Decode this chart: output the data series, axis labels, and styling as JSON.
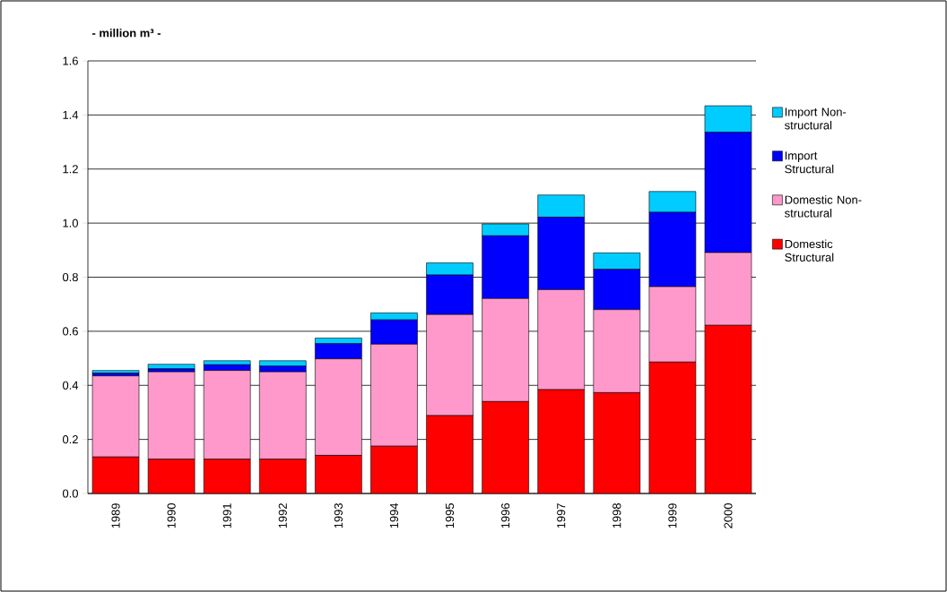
{
  "chart_data": {
    "type": "bar",
    "stacked": true,
    "ylabel": "- million m³ -",
    "categories": [
      "1989",
      "1990",
      "1991",
      "1992",
      "1993",
      "1994",
      "1995",
      "1996",
      "1997",
      "1998",
      "1999",
      "2000"
    ],
    "series": [
      {
        "name": "Domestic Structural",
        "color": "#ff0000",
        "values": [
          0.135,
          0.127,
          0.127,
          0.127,
          0.141,
          0.175,
          0.288,
          0.34,
          0.384,
          0.373,
          0.486,
          0.622
        ]
      },
      {
        "name": "Domestic Non-structural",
        "color": "#ff99cc",
        "values": [
          0.3,
          0.323,
          0.328,
          0.323,
          0.357,
          0.377,
          0.374,
          0.381,
          0.37,
          0.307,
          0.279,
          0.269
        ]
      },
      {
        "name": "Import Structural",
        "color": "#0000ff",
        "values": [
          0.01,
          0.011,
          0.021,
          0.021,
          0.056,
          0.09,
          0.146,
          0.232,
          0.268,
          0.149,
          0.275,
          0.445
        ]
      },
      {
        "name": "Import Non-structural",
        "color": "#00ccff",
        "values": [
          0.01,
          0.017,
          0.015,
          0.02,
          0.021,
          0.026,
          0.045,
          0.044,
          0.082,
          0.061,
          0.077,
          0.098
        ]
      }
    ],
    "ylim": [
      0,
      1.6
    ],
    "yticks": [
      {
        "value": 0,
        "label": "0.0"
      },
      {
        "value": 0.2,
        "label": "0.2"
      },
      {
        "value": 0.4,
        "label": "0.4"
      },
      {
        "value": 0.6,
        "label": "0.6"
      },
      {
        "value": 0.8,
        "label": "0.8"
      },
      {
        "value": 1.0,
        "label": "1.0"
      },
      {
        "value": 1.2,
        "label": "1.2"
      },
      {
        "value": 1.4,
        "label": "1.4"
      },
      {
        "value": 1.6,
        "label": "1.6"
      }
    ],
    "grid": "y",
    "legend": "right"
  }
}
